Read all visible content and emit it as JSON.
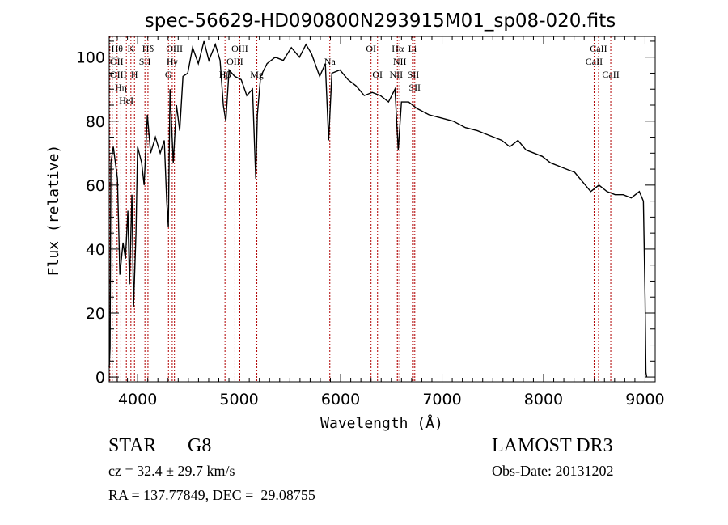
{
  "chart_data": {
    "type": "line",
    "title": "spec-56629-HD090800N293915M01_sp08-020.fits",
    "xlabel": "Wavelength (Å)",
    "ylabel": "Flux (relative)",
    "xlim": [
      3720,
      9100
    ],
    "ylim": [
      -1.5,
      106.5
    ],
    "x_ticks": [
      4000,
      5000,
      6000,
      7000,
      8000,
      9000
    ],
    "y_ticks": [
      0,
      20,
      40,
      60,
      80,
      100
    ],
    "grid": false,
    "line_color": "#000000",
    "marker_color": "#b00000",
    "series": [
      {
        "name": "spectrum",
        "x": [
          3720,
          3729,
          3737,
          3761,
          3801,
          3825,
          3856,
          3880,
          3904,
          3920,
          3944,
          3960,
          3984,
          4000,
          4040,
          4064,
          4096,
          4128,
          4175,
          4223,
          4263,
          4287,
          4303,
          4319,
          4351,
          4383,
          4415,
          4447,
          4494,
          4542,
          4598,
          4654,
          4702,
          4766,
          4813,
          4845,
          4869,
          4901,
          4957,
          5021,
          5076,
          5132,
          5164,
          5180,
          5212,
          5276,
          5356,
          5435,
          5515,
          5595,
          5659,
          5714,
          5794,
          5850,
          5882,
          5914,
          5994,
          6073,
          6153,
          6233,
          6312,
          6392,
          6472,
          6536,
          6568,
          6600,
          6671,
          6751,
          6871,
          6990,
          7110,
          7229,
          7349,
          7429,
          7508,
          7588,
          7668,
          7748,
          7827,
          7907,
          7987,
          8067,
          8146,
          8226,
          8306,
          8386,
          8465,
          8545,
          8625,
          8705,
          8784,
          8864,
          8944,
          8984,
          9000,
          9008,
          9016
        ],
        "y": [
          3,
          9,
          67,
          72,
          62,
          32,
          42,
          37,
          52,
          29,
          57,
          22,
          45,
          72,
          67,
          60,
          82,
          70,
          75,
          70,
          74,
          55,
          47,
          90,
          67,
          85,
          77,
          94,
          95,
          103,
          98,
          105,
          99,
          104,
          99,
          85,
          80,
          96,
          94,
          93,
          88,
          90,
          62,
          82,
          94,
          98,
          100,
          99,
          103,
          100,
          104,
          101,
          94,
          98,
          74,
          95,
          96,
          93,
          91,
          88,
          89,
          88,
          86,
          90,
          71,
          86,
          86,
          84,
          82,
          81,
          80,
          78,
          77,
          76,
          75,
          74,
          72,
          74,
          71,
          70,
          69,
          67,
          66,
          65,
          64,
          61,
          58,
          60,
          58,
          57,
          57,
          56,
          58,
          55,
          24,
          1.5,
          0
        ]
      }
    ],
    "lines": [
      {
        "wl": 3727,
        "label": "OII",
        "row": 2
      },
      {
        "wl": 3750,
        "label": "OIII",
        "row": 3
      },
      {
        "wl": 3798,
        "label": "Hθ",
        "row": 1
      },
      {
        "wl": 3835,
        "label": "Hη",
        "row": 3
      },
      {
        "wl": 3889,
        "label": "HeI",
        "row": 2
      },
      {
        "wl": 3934,
        "label": "K",
        "row": 1
      },
      {
        "wl": 3969,
        "label": "H",
        "row": 3
      },
      {
        "wl": 4072,
        "label": "SII",
        "row": 2
      },
      {
        "wl": 4102,
        "label": "Hδ",
        "row": 1
      },
      {
        "wl": 4304,
        "label": "G",
        "row": 3
      },
      {
        "wl": 4341,
        "label": "Hγ",
        "row": 2
      },
      {
        "wl": 4363,
        "label": "OIII",
        "row": 1
      },
      {
        "wl": 4861,
        "label": "Hβ",
        "row": 3
      },
      {
        "wl": 4959,
        "label": "OIII",
        "row": 2
      },
      {
        "wl": 5007,
        "label": "OIII",
        "row": 1
      },
      {
        "wl": 5175,
        "label": "Mg",
        "row": 3
      },
      {
        "wl": 5894,
        "label": "Na",
        "row": 2
      },
      {
        "wl": 6300,
        "label": "OI",
        "row": 1
      },
      {
        "wl": 6364,
        "label": "OI",
        "row": 3
      },
      {
        "wl": 6548,
        "label": "NII",
        "row": 3
      },
      {
        "wl": 6563,
        "label": "Hα",
        "row": 1
      },
      {
        "wl": 6583,
        "label": "NII",
        "row": 2
      },
      {
        "wl": 6708,
        "label": "Li",
        "row": 2
      },
      {
        "wl": 6716,
        "label": "SII",
        "row": 1
      },
      {
        "wl": 6731,
        "label": "SII",
        "row": 3
      },
      {
        "wl": 8498,
        "label": "CaII",
        "row": 2
      },
      {
        "wl": 8542,
        "label": "CaII",
        "row": 1
      },
      {
        "wl": 8662,
        "label": "CaII",
        "row": 3
      }
    ]
  },
  "info": {
    "object_class": "STAR",
    "subclass": "G8",
    "redshift": "cz = 32.4 ± 29.7 km/s",
    "coords": "RA = 137.77849, DEC =  29.08755",
    "survey": "LAMOST DR3",
    "obs_date": "Obs-Date: 20131202"
  }
}
